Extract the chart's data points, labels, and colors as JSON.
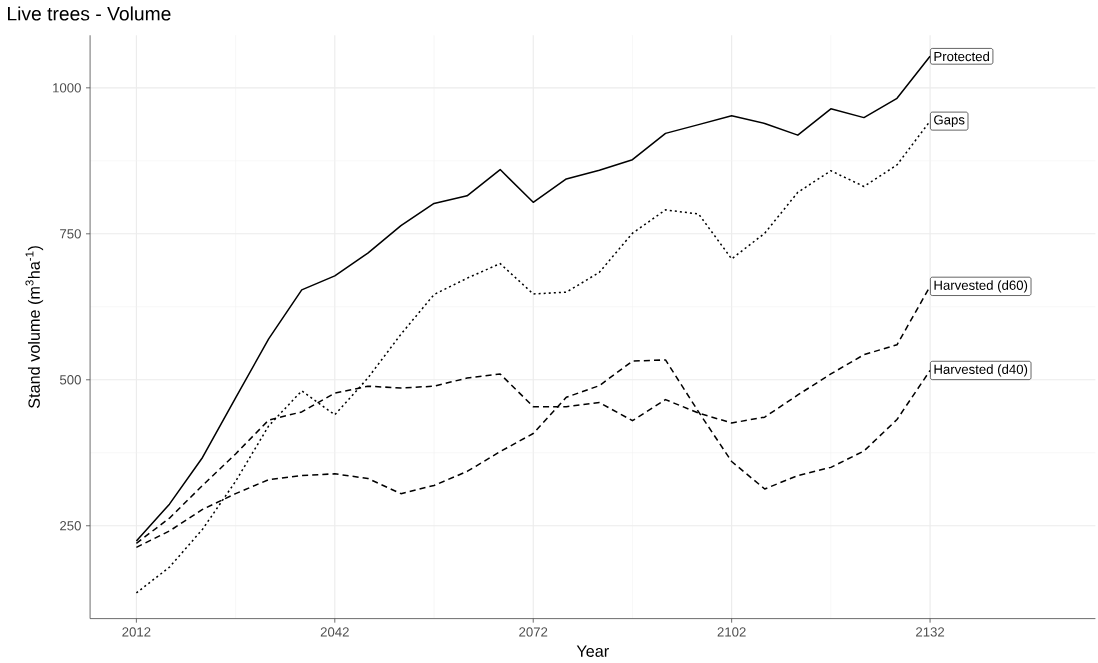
{
  "chart_data": {
    "type": "line",
    "title": "Live trees - Volume",
    "xlabel": "Year",
    "ylabel": "Stand volume (m$^{3}$ha$^{-1}$)",
    "x": [
      2012,
      2017,
      2022,
      2027,
      2032,
      2037,
      2042,
      2047,
      2052,
      2057,
      2062,
      2067,
      2072,
      2077,
      2082,
      2087,
      2092,
      2097,
      2102,
      2107,
      2112,
      2117,
      2122,
      2127,
      2132
    ],
    "series": [
      {
        "color": "#000000",
        "line_style": "solid",
        "values": [
          224,
          287,
          367,
          469,
          570,
          654,
          678,
          717,
          764,
          802,
          815,
          860,
          804,
          844,
          859,
          877,
          922,
          937,
          952,
          939,
          919,
          964,
          949,
          982,
          1054
        ]
      },
      {
        "color": "#000000",
        "line_style": "dotted",
        "values": [
          135,
          179,
          244,
          326,
          421,
          481,
          440,
          503,
          578,
          646,
          674,
          699,
          647,
          650,
          684,
          751,
          791,
          784,
          707,
          751,
          821,
          858,
          831,
          868,
          943
        ]
      },
      {
        "color": "#000000",
        "line_style": "dashed",
        "values": [
          220,
          263,
          319,
          373,
          431,
          445,
          477,
          489,
          486,
          489,
          503,
          510,
          454,
          454,
          461,
          430,
          466,
          443,
          426,
          436,
          474,
          510,
          543,
          560,
          660
        ]
      },
      {
        "color": "#000000",
        "line_style": "dashed",
        "values": [
          213,
          241,
          278,
          305,
          329,
          336,
          339,
          331,
          305,
          319,
          343,
          377,
          408,
          470,
          490,
          532,
          534,
          445,
          360,
          313,
          336,
          350,
          378,
          432,
          516
        ]
      }
    ],
    "annotations": [
      "Protected",
      "Gaps",
      "Harvested (d60)",
      "Harvested (d40)"
    ],
    "xlim": [
      2005,
      2157
    ],
    "ylim": [
      91,
      1090
    ],
    "xticks": [
      2012,
      2042,
      2072,
      2102,
      2132
    ],
    "yticks": [
      250,
      500,
      750,
      1000
    ],
    "grid": true
  }
}
